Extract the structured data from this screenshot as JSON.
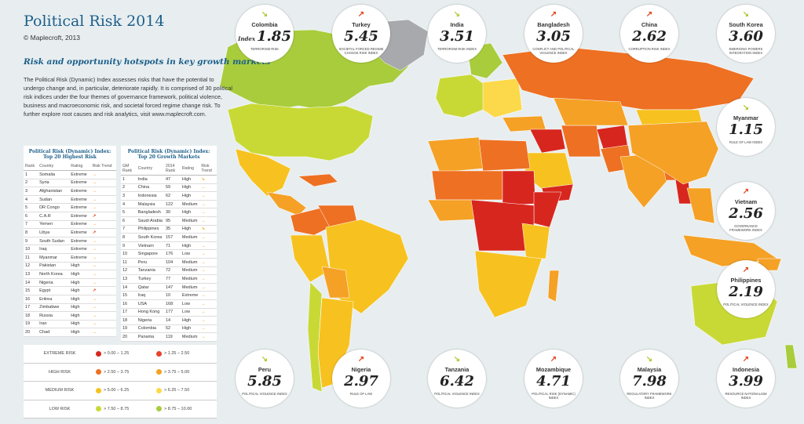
{
  "title": "Political Risk 2014",
  "copyright": "© Maplecroft, 2013",
  "subtitle": "Risk and opportunity hotspots in key growth markets",
  "intro": "The Political Risk (Dynamic) Index assesses risks that have the potential to undergo change and, in particular, deteriorate rapidly. It is comprised of 30 political risk indices under the four themes of governance framework, political violence, business and macroeconomic risk, and societal forced regime change risk. To further explore root causes and risk analytics, visit www.maplecroft.com.",
  "colors": {
    "extreme_dark": "#d7261e",
    "extreme_light": "#e8412a",
    "high_dark": "#ee7022",
    "high_light": "#f5a125",
    "medium_dark": "#f7c21f",
    "medium_light": "#fbd94a",
    "low_dark": "#c8d936",
    "low_light": "#a8cc3c",
    "nodata": "#a7a9ac",
    "ocean": "#e8eef0"
  },
  "table1": {
    "caption_line1": "Political Risk (Dynamic) Index:",
    "caption_line2": "Top 20 Highest Risk",
    "headers": [
      "Rank",
      "Country",
      "Rating",
      "Risk Trend"
    ],
    "rows": [
      [
        "1",
        "Somalia",
        "Extreme",
        "side"
      ],
      [
        "2",
        "Syria",
        "Extreme",
        "side"
      ],
      [
        "3",
        "Afghanistan",
        "Extreme",
        "side"
      ],
      [
        "4",
        "Sudan",
        "Extreme",
        "side"
      ],
      [
        "5",
        "DR Congo",
        "Extreme",
        "side"
      ],
      [
        "6",
        "C.A.R",
        "Extreme",
        "up"
      ],
      [
        "7",
        "Yemen",
        "Extreme",
        "side"
      ],
      [
        "8",
        "Libya",
        "Extreme",
        "up"
      ],
      [
        "9",
        "South Sudan",
        "Extreme",
        "side"
      ],
      [
        "10",
        "Iraq",
        "Extreme",
        "side"
      ],
      [
        "11",
        "Myanmar",
        "Extreme",
        "side"
      ],
      [
        "12",
        "Pakistan",
        "High",
        "side"
      ],
      [
        "13",
        "North Korea",
        "High",
        "side"
      ],
      [
        "14",
        "Nigeria",
        "High",
        "side"
      ],
      [
        "15",
        "Egypt",
        "High",
        "up"
      ],
      [
        "16",
        "Eritrea",
        "High",
        "side"
      ],
      [
        "17",
        "Zimbabwe",
        "High",
        "side"
      ],
      [
        "18",
        "Russia",
        "High",
        "side"
      ],
      [
        "19",
        "Iran",
        "High",
        "side"
      ],
      [
        "20",
        "Chad",
        "High",
        "side"
      ]
    ]
  },
  "table2": {
    "caption_line1": "Political Risk (Dynamic) Index:",
    "caption_line2": "Top 20 Growth Markets",
    "headers": [
      "GM Rank",
      "Country",
      "2014 Rank",
      "Rating",
      "Risk Trend"
    ],
    "rows": [
      [
        "1",
        "India",
        "47",
        "High",
        "down"
      ],
      [
        "2",
        "China",
        "59",
        "High",
        "side"
      ],
      [
        "3",
        "Indonesia",
        "62",
        "High",
        "side"
      ],
      [
        "4",
        "Malaysia",
        "122",
        "Medium",
        "side"
      ],
      [
        "5",
        "Bangladesh",
        "30",
        "High",
        "side"
      ],
      [
        "6",
        "Saudi Arabia",
        "95",
        "Medium",
        "side"
      ],
      [
        "7",
        "Philippines",
        "35",
        "High",
        "down"
      ],
      [
        "8",
        "South Korea",
        "157",
        "Medium",
        "side"
      ],
      [
        "9",
        "Vietnam",
        "71",
        "High",
        "side"
      ],
      [
        "10",
        "Singapore",
        "176",
        "Low",
        "side"
      ],
      [
        "11",
        "Peru",
        "104",
        "Medium",
        "side"
      ],
      [
        "12",
        "Tanzania",
        "72",
        "Medium",
        "side"
      ],
      [
        "13",
        "Turkey",
        "77",
        "Medium",
        "side"
      ],
      [
        "14",
        "Qatar",
        "147",
        "Medium",
        "side"
      ],
      [
        "15",
        "Iraq",
        "10",
        "Extreme",
        "side"
      ],
      [
        "16",
        "USA",
        "168",
        "Low",
        "side"
      ],
      [
        "17",
        "Hong Kong",
        "177",
        "Low",
        "side"
      ],
      [
        "18",
        "Nigeria",
        "14",
        "High",
        "side"
      ],
      [
        "19",
        "Colombia",
        "52",
        "High",
        "side"
      ],
      [
        "20",
        "Panama",
        "119",
        "Medium",
        "side"
      ]
    ]
  },
  "legend": [
    {
      "label": "EXTREME RISK",
      "r1": "> 0.00 – 1.25",
      "r2": "> 1.25 – 2.50",
      "c1": "#d7261e",
      "c2": "#e8412a"
    },
    {
      "label": "HIGH RISK",
      "r1": "> 2.50 – 3.75",
      "r2": "> 3.75 – 5.00",
      "c1": "#ee7022",
      "c2": "#f5a125"
    },
    {
      "label": "MEDIUM RISK",
      "r1": "> 5.00 – 6.25",
      "r2": "> 6.25 – 7.50",
      "c1": "#f7c21f",
      "c2": "#fbd94a"
    },
    {
      "label": "LOW RISK",
      "r1": "> 7.50 – 8.75",
      "r2": "> 8.75 – 10.00",
      "c1": "#c8d936",
      "c2": "#a8cc3c"
    }
  ],
  "callouts": [
    {
      "name": "Colombia",
      "prefix": "Index",
      "value": "1.85",
      "index": "TERRORISM RISK",
      "trend": "down"
    },
    {
      "name": "Turkey",
      "prefix": "",
      "value": "5.45",
      "index": "SOCIETAL FORCED REGIME CHANGE RISK INDEX",
      "trend": "up"
    },
    {
      "name": "India",
      "prefix": "",
      "value": "3.51",
      "index": "TERRORISM RISK INDEX",
      "trend": "down"
    },
    {
      "name": "Bangladesh",
      "prefix": "",
      "value": "3.05",
      "index": "CONFLICT AND POLITICAL VIOLENCE INDEX",
      "trend": "up"
    },
    {
      "name": "China",
      "prefix": "",
      "value": "2.62",
      "index": "CORRUPTION RISK INDEX",
      "trend": "up"
    },
    {
      "name": "South Korea",
      "prefix": "",
      "value": "3.60",
      "index": "EMERGING POWERS INTEGRATION INDEX",
      "trend": "down"
    },
    {
      "name": "Myanmar",
      "prefix": "",
      "value": "1.15",
      "index": "RULE OF LAW INDEX",
      "trend": "down"
    },
    {
      "name": "Vietnam",
      "prefix": "",
      "value": "2.56",
      "index": "GOVERNANCE FRAMEWORK INDEX",
      "trend": "up"
    },
    {
      "name": "Philippines",
      "prefix": "",
      "value": "2.19",
      "index": "POLITICAL VIOLENCE INDEX",
      "trend": "up"
    },
    {
      "name": "Indonesia",
      "prefix": "",
      "value": "3.99",
      "index": "RESOURCE NATIONALISM INDEX",
      "trend": "up"
    },
    {
      "name": "Malaysia",
      "prefix": "",
      "value": "7.98",
      "index": "REGULATORY FRAMEWORK INDEX",
      "trend": "down"
    },
    {
      "name": "Mozambique",
      "prefix": "",
      "value": "4.71",
      "index": "POLITICAL RISK (DYNAMIC) INDEX",
      "trend": "up"
    },
    {
      "name": "Tanzania",
      "prefix": "",
      "value": "6.42",
      "index": "POLITICAL VIOLENCE INDEX",
      "trend": "down"
    },
    {
      "name": "Nigeria",
      "prefix": "",
      "value": "2.97",
      "index": "RULE OF LAW",
      "trend": "up"
    },
    {
      "name": "Peru",
      "prefix": "",
      "value": "5.85",
      "index": "POLITICAL VIOLENCE INDEX",
      "trend": "down"
    }
  ]
}
